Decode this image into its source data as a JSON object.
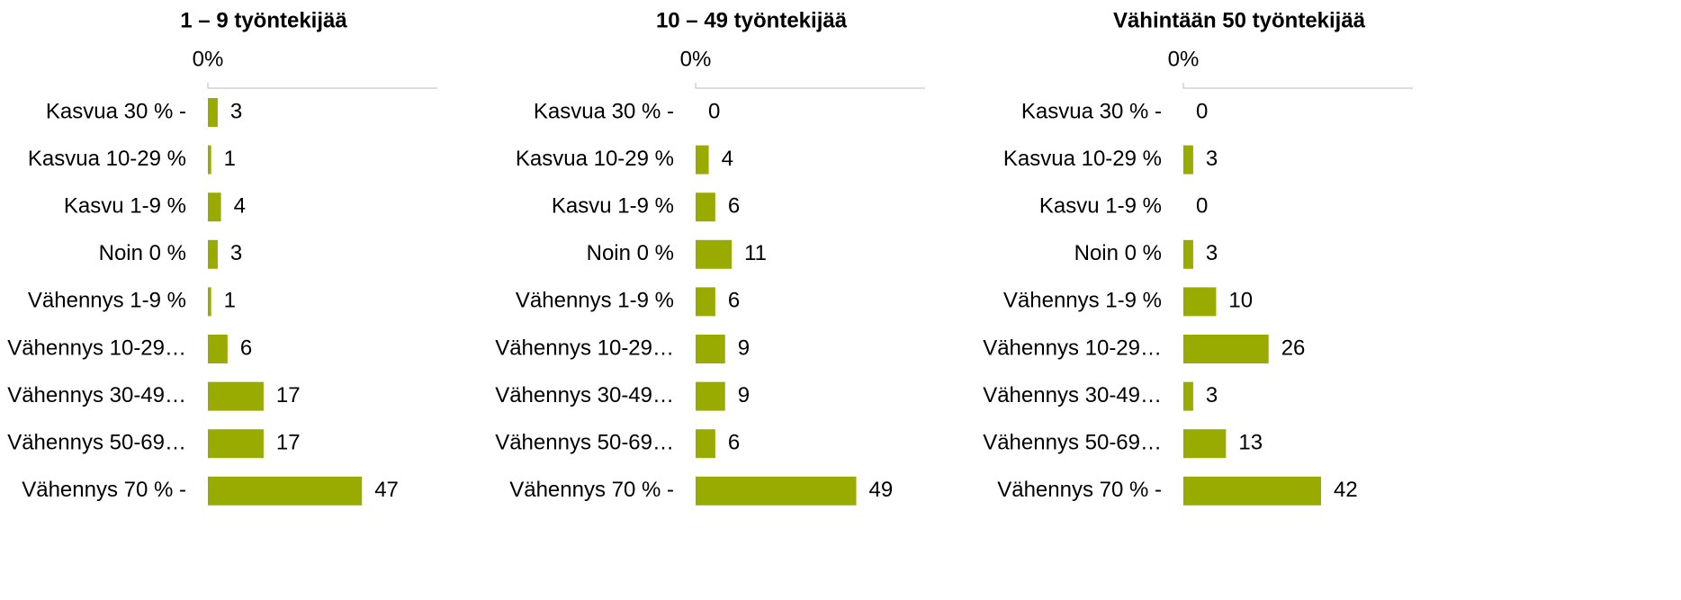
{
  "chart_data": [
    {
      "type": "bar",
      "orientation": "horizontal",
      "title": "1 – 9 työntekijää",
      "categories": [
        "Kasvua 30 % -",
        "Kasvua 10-29 %",
        "Kasvu 1-9 %",
        "Noin 0 %",
        "Vähennys 1-9 %",
        "Vähennys 10-29…",
        "Vähennys 30-49…",
        "Vähennys 50-69…",
        "Vähennys 70 % -"
      ],
      "values": [
        3,
        1,
        4,
        3,
        1,
        6,
        17,
        17,
        47
      ],
      "color": "#9aab00",
      "xlim": [
        0,
        70
      ],
      "xticks": [
        {
          "value": 0,
          "label": "0%"
        }
      ]
    },
    {
      "type": "bar",
      "orientation": "horizontal",
      "title": "10 – 49 työntekijää",
      "categories": [
        "Kasvua 30 % -",
        "Kasvua 10-29 %",
        "Kasvu 1-9 %",
        "Noin 0 %",
        "Vähennys 1-9 %",
        "Vähennys 10-29…",
        "Vähennys 30-49…",
        "Vähennys 50-69…",
        "Vähennys 70 % -"
      ],
      "values": [
        0,
        4,
        6,
        11,
        6,
        9,
        9,
        6,
        49
      ],
      "color": "#9aab00",
      "xlim": [
        0,
        70
      ],
      "xticks": [
        {
          "value": 0,
          "label": "0%"
        }
      ]
    },
    {
      "type": "bar",
      "orientation": "horizontal",
      "title": "Vähintään 50 työntekijää",
      "categories": [
        "Kasvua 30 % -",
        "Kasvua 10-29 %",
        "Kasvu 1-9 %",
        "Noin 0 %",
        "Vähennys 1-9 %",
        "Vähennys 10-29…",
        "Vähennys 30-49…",
        "Vähennys 50-69…",
        "Vähennys 70 % -"
      ],
      "values": [
        0,
        3,
        0,
        3,
        10,
        26,
        3,
        13,
        42
      ],
      "color": "#9aab00",
      "xlim": [
        0,
        70
      ],
      "xticks": [
        {
          "value": 0,
          "label": "0%"
        }
      ]
    }
  ]
}
